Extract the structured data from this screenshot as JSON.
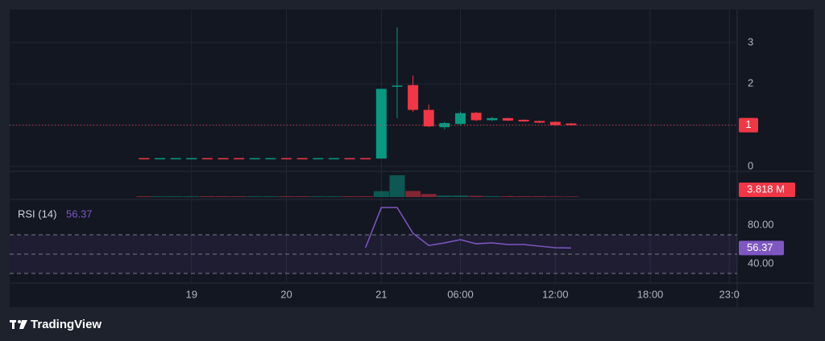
{
  "chart_data": {
    "type": "candlestick",
    "xlim": [
      -8.5,
      37.5
    ],
    "xticks": [
      {
        "value": 3,
        "label": "19"
      },
      {
        "value": 9,
        "label": "20"
      },
      {
        "value": 15,
        "label": "21"
      },
      {
        "value": 20,
        "label": "06:00"
      },
      {
        "value": 26,
        "label": "12:00"
      },
      {
        "value": 32,
        "label": "18:00"
      },
      {
        "value": 37,
        "label": "23:0"
      }
    ],
    "open": [
      0.2,
      0.19,
      0.19,
      0.19,
      0.2,
      0.2,
      0.2,
      0.19,
      0.19,
      0.2,
      0.2,
      0.19,
      0.19,
      0.2,
      0.2,
      0.19,
      1.93,
      1.97,
      1.37,
      0.95,
      1.03,
      1.3,
      1.12,
      1.17,
      1.13,
      1.1,
      1.08,
      1.04
    ],
    "high": [
      0.2,
      0.2,
      0.2,
      0.2,
      0.2,
      0.2,
      0.2,
      0.2,
      0.2,
      0.2,
      0.2,
      0.2,
      0.2,
      0.2,
      0.2,
      1.88,
      3.37,
      2.2,
      1.5,
      1.08,
      1.33,
      1.32,
      1.2,
      1.18,
      1.14,
      1.11,
      1.09,
      1.05
    ],
    "low": [
      0.19,
      0.19,
      0.19,
      0.19,
      0.19,
      0.19,
      0.19,
      0.19,
      0.19,
      0.19,
      0.19,
      0.19,
      0.19,
      0.19,
      0.19,
      0.19,
      1.17,
      1.32,
      0.95,
      0.9,
      1.0,
      1.1,
      1.1,
      1.1,
      1.08,
      1.05,
      0.99,
      0.99
    ],
    "close": [
      0.19,
      0.2,
      0.2,
      0.2,
      0.19,
      0.19,
      0.19,
      0.2,
      0.2,
      0.19,
      0.19,
      0.2,
      0.2,
      0.19,
      0.19,
      1.88,
      1.96,
      1.37,
      0.97,
      1.05,
      1.29,
      1.12,
      1.17,
      1.11,
      1.09,
      1.06,
      1.0,
      1.0
    ],
    "up_color": "#089981",
    "down_color": "#f23645",
    "ylim": [
      -0.1,
      3.8
    ],
    "yticks": [
      0,
      1,
      2,
      3
    ],
    "grid": true,
    "last_price": 1,
    "volume": {
      "values": [
        0.4,
        0.4,
        0.4,
        0.4,
        0.4,
        0.4,
        0.4,
        0.4,
        0.4,
        0.4,
        0.4,
        0.4,
        0.4,
        0.4,
        0.4,
        3.1,
        11.5,
        3.2,
        1.6,
        0.8,
        0.8,
        0.6,
        0.5,
        0.4,
        0.4,
        0.4,
        0.3,
        0.3
      ],
      "ylim": [
        0,
        12.3
      ],
      "badge": {
        "value": 3.818,
        "label": "3.818 M"
      }
    },
    "rsi": {
      "title": "RSI (14)",
      "value": 56.37,
      "values": [
        null,
        null,
        null,
        null,
        null,
        null,
        null,
        null,
        null,
        null,
        null,
        null,
        null,
        null,
        56.7,
        98.3,
        98.3,
        71.7,
        59,
        61.7,
        65,
        60.8,
        61.7,
        60,
        60,
        58.3,
        56.7,
        56.37
      ],
      "ylim": [
        21.7,
        105
      ],
      "yticks": [
        {
          "value": 80,
          "label": "80.00"
        },
        {
          "value": 40,
          "label": "40.00"
        }
      ],
      "levels": [
        70,
        50,
        30
      ],
      "color": "#7e57c2"
    }
  },
  "footer": {
    "brand": "TradingView"
  }
}
